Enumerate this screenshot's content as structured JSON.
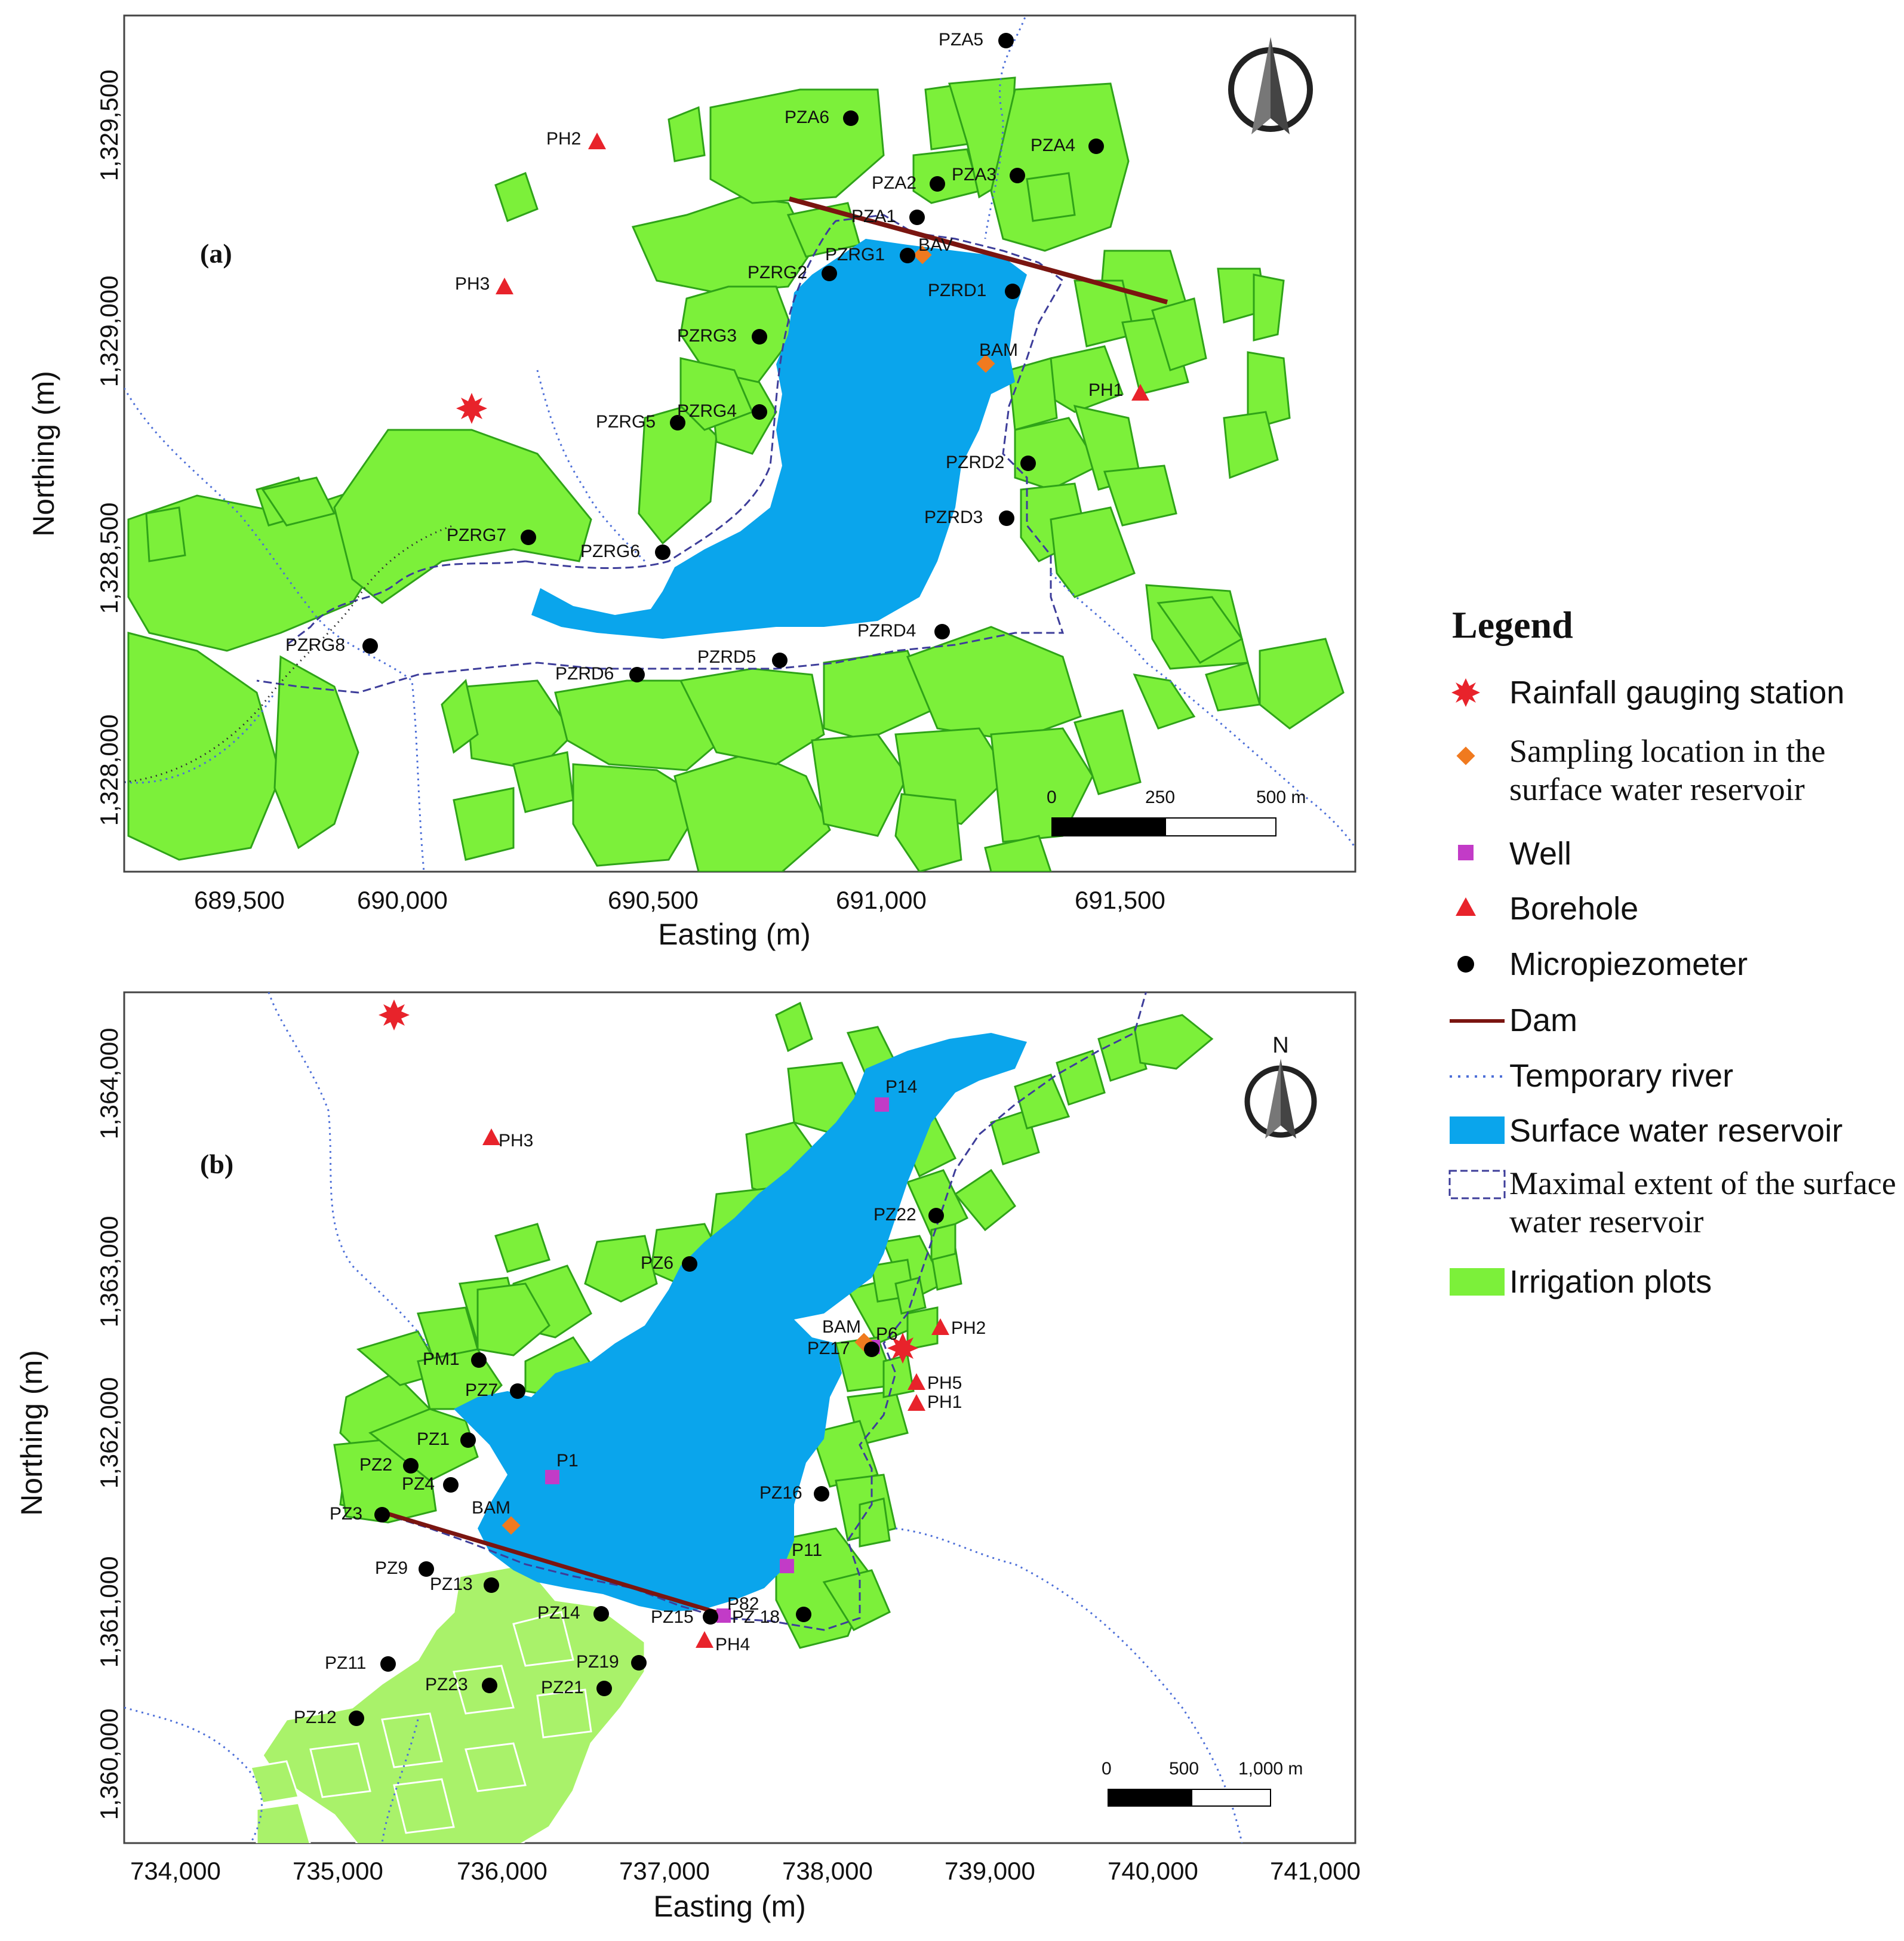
{
  "panel_a": {
    "label": "(a)",
    "xlabel": "Easting (m)",
    "ylabel": "Northing (m)",
    "x_ticks": [
      "689,500",
      "690,000",
      "690,500",
      "691,000",
      "691,500"
    ],
    "y_ticks": [
      "1,329,500",
      "1,329,000",
      "1,328,500",
      "1,328,000"
    ],
    "scale_labels": [
      "0",
      "250",
      "500 m"
    ],
    "points": [
      {
        "label": "PZA5",
        "type": "micropiezometer"
      },
      {
        "label": "PZA6",
        "type": "micropiezometer"
      },
      {
        "label": "PZA4",
        "type": "micropiezometer"
      },
      {
        "label": "PZA2",
        "type": "micropiezometer"
      },
      {
        "label": "PZA3",
        "type": "micropiezometer"
      },
      {
        "label": "PZA1",
        "type": "micropiezometer"
      },
      {
        "label": "PZRG1",
        "type": "micropiezometer"
      },
      {
        "label": "BAV",
        "type": "sampling"
      },
      {
        "label": "PZRG2",
        "type": "micropiezometer"
      },
      {
        "label": "PZRD1",
        "type": "micropiezometer"
      },
      {
        "label": "PZRG3",
        "type": "micropiezometer"
      },
      {
        "label": "BAM",
        "type": "sampling"
      },
      {
        "label": "PZRG4",
        "type": "micropiezometer"
      },
      {
        "label": "PZRG5",
        "type": "micropiezometer"
      },
      {
        "label": "PZRD2",
        "type": "micropiezometer"
      },
      {
        "label": "PZRD3",
        "type": "micropiezometer"
      },
      {
        "label": "PZRG7",
        "type": "micropiezometer"
      },
      {
        "label": "PZRG6",
        "type": "micropiezometer"
      },
      {
        "label": "PZRD4",
        "type": "micropiezometer"
      },
      {
        "label": "PZRG8",
        "type": "micropiezometer"
      },
      {
        "label": "PZRD5",
        "type": "micropiezometer"
      },
      {
        "label": "PZRD6",
        "type": "micropiezometer"
      },
      {
        "label": "PH2",
        "type": "borehole"
      },
      {
        "label": "PH3",
        "type": "borehole"
      },
      {
        "label": "PH1",
        "type": "borehole"
      },
      {
        "label": "",
        "type": "rain"
      }
    ]
  },
  "panel_b": {
    "label": "(b)",
    "xlabel": "Easting (m)",
    "ylabel": "Northing (m)",
    "x_ticks": [
      "734,000",
      "735,000",
      "736,000",
      "737,000",
      "738,000",
      "739,000",
      "740,000",
      "741,000"
    ],
    "y_ticks": [
      "1,364,000",
      "1,363,000",
      "1,362,000",
      "1,361,000",
      "1,360,000"
    ],
    "scale_labels": [
      "0",
      "500",
      "1,000 m"
    ],
    "north_label": "N",
    "points": [
      {
        "label": "",
        "type": "rain"
      },
      {
        "label": "PH3",
        "type": "borehole"
      },
      {
        "label": "P14",
        "type": "well"
      },
      {
        "label": "PZ22",
        "type": "micropiezometer"
      },
      {
        "label": "PZ6",
        "type": "micropiezometer"
      },
      {
        "label": "BAM",
        "type": "sampling"
      },
      {
        "label": "PZ17",
        "type": "micropiezometer"
      },
      {
        "label": "P6",
        "type": "well"
      },
      {
        "label": "",
        "type": "rain"
      },
      {
        "label": "PH2",
        "type": "borehole"
      },
      {
        "label": "PH5",
        "type": "borehole"
      },
      {
        "label": "PH1",
        "type": "borehole"
      },
      {
        "label": "PM1",
        "type": "micropiezometer"
      },
      {
        "label": "PZ7",
        "type": "micropiezometer"
      },
      {
        "label": "PZ1",
        "type": "micropiezometer"
      },
      {
        "label": "PZ2",
        "type": "micropiezometer"
      },
      {
        "label": "PZ4",
        "type": "micropiezometer"
      },
      {
        "label": "P1",
        "type": "well"
      },
      {
        "label": "PZ3",
        "type": "micropiezometer"
      },
      {
        "label": "BAM",
        "type": "sampling"
      },
      {
        "label": "PZ16",
        "type": "micropiezometer"
      },
      {
        "label": "P11",
        "type": "well"
      },
      {
        "label": "PZ9",
        "type": "micropiezometer"
      },
      {
        "label": "PZ13",
        "type": "micropiezometer"
      },
      {
        "label": "PZ14",
        "type": "micropiezometer"
      },
      {
        "label": "PZ15",
        "type": "micropiezometer"
      },
      {
        "label": "P82",
        "type": "well"
      },
      {
        "label": "PZ 18",
        "type": "micropiezometer"
      },
      {
        "label": "PH4",
        "type": "borehole"
      },
      {
        "label": "PZ11",
        "type": "micropiezometer"
      },
      {
        "label": "PZ19",
        "type": "micropiezometer"
      },
      {
        "label": "PZ23",
        "type": "micropiezometer"
      },
      {
        "label": "PZ21",
        "type": "micropiezometer"
      },
      {
        "label": "PZ12",
        "type": "micropiezometer"
      }
    ]
  },
  "legend": {
    "title": "Legend",
    "items": [
      {
        "label": "Rainfall gauging station",
        "symbol": "rain"
      },
      {
        "label": "Sampling location in the surface water reservoir",
        "symbol": "sampling"
      },
      {
        "label": "Well",
        "symbol": "well"
      },
      {
        "label": "Borehole",
        "symbol": "borehole"
      },
      {
        "label": "Micropiezometer",
        "symbol": "micropiezometer"
      },
      {
        "label": "Dam",
        "symbol": "dam"
      },
      {
        "label": "Temporary river",
        "symbol": "river"
      },
      {
        "label": "Surface water reservoir",
        "symbol": "reservoir"
      },
      {
        "label": "Maximal extent of the surface water reservoir",
        "symbol": "extent"
      },
      {
        "label": "Irrigation plots",
        "symbol": "plots"
      }
    ]
  },
  "colors": {
    "reservoir": "#0aa5ec",
    "plots": "#7cf03a",
    "plot_edge": "#2fa318",
    "borehole": "#e8232b",
    "well": "#c23bc7",
    "sampling": "#f07a1f",
    "dam": "#7a1510",
    "river": "#4d6fd8",
    "extent": "#3d3d9a"
  }
}
